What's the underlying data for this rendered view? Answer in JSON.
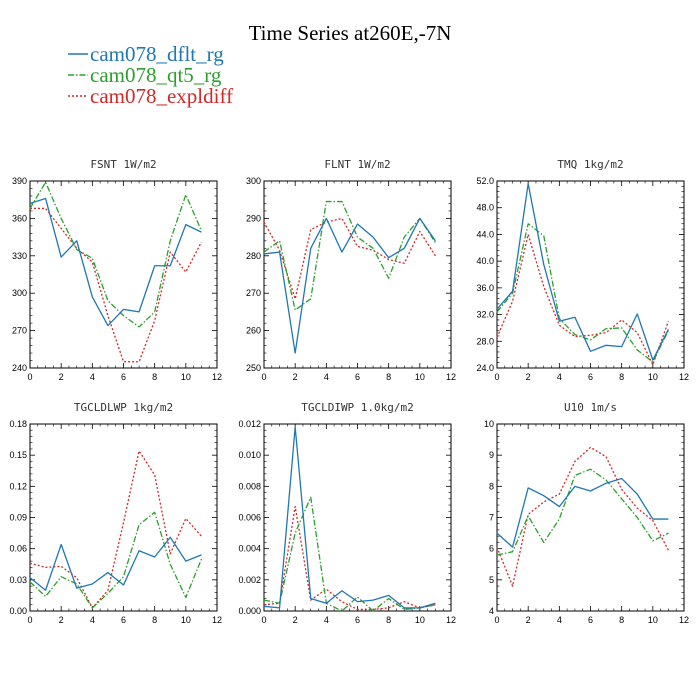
{
  "title": "Time Series at260E,-7N",
  "legend": [
    {
      "label": "cam078_dflt_rg",
      "color": "#1f77b4",
      "dash": "solid"
    },
    {
      "label": "cam078_qt5_rg",
      "color": "#2ca02c",
      "dash": "dashdot"
    },
    {
      "label": "cam078_expldiff",
      "color": "#d62728",
      "dash": "dotted"
    }
  ],
  "chart_data": [
    {
      "type": "line",
      "title": "FSNT  1W/m2",
      "x": [
        0,
        1,
        2,
        3,
        4,
        5,
        6,
        7,
        8,
        9,
        10,
        11
      ],
      "xlim": [
        0,
        12
      ],
      "xticks": [
        0,
        2,
        4,
        6,
        8,
        10,
        12
      ],
      "xtick_labels": [
        "0",
        "2",
        "4",
        "6",
        "8",
        "10",
        "12"
      ],
      "ylim": [
        240,
        390
      ],
      "yticks": [
        240,
        270,
        300,
        330,
        360,
        390
      ],
      "ytick_labels": [
        "240",
        "270",
        "300",
        "330",
        "360",
        "390"
      ],
      "series": [
        {
          "name": "cam078_dflt_rg",
          "values": [
            372,
            376,
            329,
            342,
            297,
            274,
            287,
            285,
            322,
            322,
            355,
            349
          ]
        },
        {
          "name": "cam078_qt5_rg",
          "values": [
            368,
            389,
            360,
            335,
            328,
            294,
            282,
            273,
            285,
            342,
            379,
            350
          ]
        },
        {
          "name": "cam078_expldiff",
          "values": [
            368,
            368,
            352,
            336,
            325,
            282,
            245,
            245,
            278,
            333,
            317,
            341
          ]
        }
      ]
    },
    {
      "type": "line",
      "title": "FLNT  1W/m2",
      "x": [
        0,
        1,
        2,
        3,
        4,
        5,
        6,
        7,
        8,
        9,
        10,
        11
      ],
      "xlim": [
        0,
        12
      ],
      "xticks": [
        0,
        2,
        4,
        6,
        8,
        10,
        12
      ],
      "xtick_labels": [
        "0",
        "2",
        "4",
        "6",
        "8",
        "10",
        "12"
      ],
      "ylim": [
        250,
        300
      ],
      "yticks": [
        250,
        260,
        270,
        280,
        290,
        300
      ],
      "ytick_labels": [
        "250",
        "260",
        "270",
        "280",
        "290",
        "300"
      ],
      "series": [
        {
          "name": "cam078_dflt_rg",
          "values": [
            280.5,
            281,
            254,
            282,
            290,
            281,
            288.5,
            285,
            279.5,
            282,
            290,
            284
          ]
        },
        {
          "name": "cam078_qt5_rg",
          "values": [
            281,
            284,
            265.5,
            268.5,
            294.5,
            294.5,
            285,
            282,
            274,
            285,
            290,
            283.5
          ]
        },
        {
          "name": "cam078_expldiff",
          "values": [
            289,
            281.5,
            268.5,
            287,
            289,
            290,
            282.5,
            281.5,
            279,
            278,
            286.5,
            280
          ]
        }
      ]
    },
    {
      "type": "line",
      "title": "TMQ  1kg/m2",
      "x": [
        0,
        1,
        2,
        3,
        4,
        5,
        6,
        7,
        8,
        9,
        10,
        11
      ],
      "xlim": [
        0,
        12
      ],
      "xticks": [
        0,
        2,
        4,
        6,
        8,
        10,
        12
      ],
      "xtick_labels": [
        "0",
        "2",
        "4",
        "6",
        "8",
        "10",
        "12"
      ],
      "ylim": [
        24,
        52
      ],
      "yticks": [
        24,
        28,
        32,
        36,
        40,
        44,
        48,
        52
      ],
      "ytick_labels": [
        "24.0",
        "28.0",
        "32.0",
        "36.0",
        "40.0",
        "44.0",
        "48.0",
        "52.0"
      ],
      "series": [
        {
          "name": "cam078_dflt_rg",
          "values": [
            32.8,
            35.5,
            51.6,
            39.5,
            31,
            31.6,
            26.5,
            27.4,
            27.2,
            32.1,
            25.2,
            29.8
          ]
        },
        {
          "name": "cam078_qt5_rg",
          "values": [
            32.4,
            35.2,
            45.6,
            43.8,
            31.4,
            29,
            28.2,
            29.9,
            30,
            26.7,
            24.9,
            29.6
          ]
        },
        {
          "name": "cam078_expldiff",
          "values": [
            28.6,
            34,
            44,
            36.2,
            30.4,
            28.7,
            28.9,
            29.3,
            31.2,
            29.3,
            24.5,
            31
          ]
        }
      ]
    },
    {
      "type": "line",
      "title": "TGCLDLWP  1kg/m2",
      "x": [
        0,
        1,
        2,
        3,
        4,
        5,
        6,
        7,
        8,
        9,
        10,
        11
      ],
      "xlim": [
        0,
        12
      ],
      "xticks": [
        0,
        2,
        4,
        6,
        8,
        10,
        12
      ],
      "xtick_labels": [
        "0",
        "2",
        "4",
        "6",
        "8",
        "10",
        "12"
      ],
      "ylim": [
        0,
        0.18
      ],
      "yticks": [
        0,
        0.03,
        0.06,
        0.09,
        0.12,
        0.15,
        0.18
      ],
      "ytick_labels": [
        "0.00",
        "0.03",
        "0.06",
        "0.09",
        "0.12",
        "0.15",
        "0.18"
      ],
      "series": [
        {
          "name": "cam078_dflt_rg",
          "values": [
            0.032,
            0.02,
            0.064,
            0.022,
            0.026,
            0.037,
            0.025,
            0.058,
            0.052,
            0.071,
            0.048,
            0.054
          ]
        },
        {
          "name": "cam078_qt5_rg",
          "values": [
            0.028,
            0.014,
            0.033,
            0.026,
            0.003,
            0.017,
            0.033,
            0.083,
            0.095,
            0.045,
            0.013,
            0.05
          ]
        },
        {
          "name": "cam078_expldiff",
          "values": [
            0.046,
            0.042,
            0.043,
            0.032,
            0.003,
            0.02,
            0.085,
            0.154,
            0.131,
            0.055,
            0.089,
            0.072
          ]
        }
      ]
    },
    {
      "type": "line",
      "title": "TGCLDIWP  1.0kg/m2",
      "x": [
        0,
        1,
        2,
        3,
        4,
        5,
        6,
        7,
        8,
        9,
        10,
        11
      ],
      "xlim": [
        0,
        12
      ],
      "xticks": [
        0,
        2,
        4,
        6,
        8,
        10,
        12
      ],
      "xtick_labels": [
        "0",
        "2",
        "4",
        "6",
        "8",
        "10",
        "12"
      ],
      "ylim": [
        0,
        0.012
      ],
      "yticks": [
        0,
        0.002,
        0.004,
        0.006,
        0.008,
        0.01,
        0.012
      ],
      "ytick_labels": [
        "0.000",
        "0.002",
        "0.004",
        "0.006",
        "0.008",
        "0.010",
        "0.012"
      ],
      "series": [
        {
          "name": "cam078_dflt_rg",
          "values": [
            0.0003,
            0.0002,
            0.0118,
            0.0008,
            0.0005,
            0.0013,
            0.0006,
            0.0007,
            0.001,
            0.0002,
            0.0002,
            0.0005
          ]
        },
        {
          "name": "cam078_qt5_rg",
          "values": [
            0.0007,
            0.0005,
            0.005,
            0.0073,
            0.0005,
            0.0,
            0.0009,
            0.0,
            0.0008,
            0.0001,
            0.0002,
            0.0004
          ]
        },
        {
          "name": "cam078_expldiff",
          "values": [
            0.0004,
            0.0005,
            0.0067,
            0.0007,
            0.0014,
            0.0006,
            0.0001,
            0.0001,
            0.0002,
            0.0006,
            0.0002,
            0.0004
          ]
        }
      ]
    },
    {
      "type": "line",
      "title": "U10  1m/s",
      "x": [
        0,
        1,
        2,
        3,
        4,
        5,
        6,
        7,
        8,
        9,
        10,
        11
      ],
      "xlim": [
        0,
        12
      ],
      "xticks": [
        0,
        2,
        4,
        6,
        8,
        10,
        12
      ],
      "xtick_labels": [
        "0",
        "2",
        "4",
        "6",
        "8",
        "10",
        "12"
      ],
      "ylim": [
        4,
        10
      ],
      "yticks": [
        4,
        5,
        6,
        7,
        8,
        9,
        10
      ],
      "ytick_labels": [
        "4",
        "5",
        "6",
        "7",
        "8",
        "9",
        "10"
      ],
      "series": [
        {
          "name": "cam078_dflt_rg",
          "values": [
            6.5,
            6.05,
            7.95,
            7.7,
            7.35,
            8,
            7.85,
            8.1,
            8.25,
            7.75,
            6.95,
            6.95
          ]
        },
        {
          "name": "cam078_qt5_rg",
          "values": [
            5.8,
            5.9,
            7.05,
            6.2,
            6.95,
            8.35,
            8.55,
            8.2,
            7.6,
            7,
            6.25,
            6.5
          ]
        },
        {
          "name": "cam078_expldiff",
          "values": [
            6.05,
            4.8,
            7.1,
            7.5,
            7.75,
            8.8,
            9.25,
            8.95,
            7.9,
            7.3,
            6.9,
            5.95
          ]
        }
      ]
    }
  ]
}
